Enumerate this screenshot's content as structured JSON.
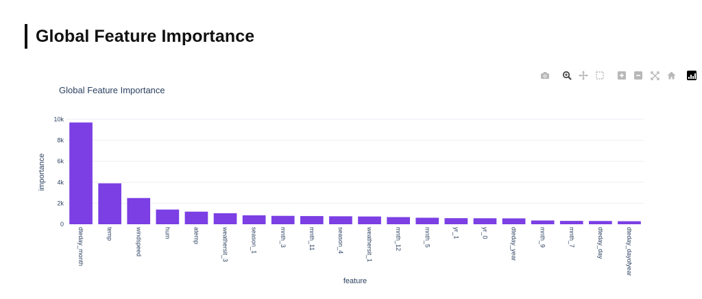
{
  "page": {
    "title": "Global Feature Importance"
  },
  "toolbar": {
    "buttons": [
      {
        "name": "camera-icon"
      },
      {
        "name": "zoom-icon"
      },
      {
        "name": "pan-icon"
      },
      {
        "name": "box-select-icon"
      },
      {
        "name": "zoom-in-icon"
      },
      {
        "name": "zoom-out-icon"
      },
      {
        "name": "autoscale-icon"
      },
      {
        "name": "reset-axes-icon"
      },
      {
        "name": "plotly-logo-icon"
      }
    ]
  },
  "chart_data": {
    "type": "bar",
    "title": "Global Feature Importance",
    "xlabel": "feature",
    "ylabel": "importance",
    "ylim": [
      0,
      10000
    ],
    "yticks": [
      0,
      2000,
      4000,
      6000,
      8000,
      10000
    ],
    "ytick_labels": [
      "0",
      "2k",
      "4k",
      "6k",
      "8k",
      "10k"
    ],
    "grid": true,
    "bar_color": "#7b3fe4",
    "categories": [
      "dteday_month",
      "temp",
      "windspeed",
      "hum",
      "atemp",
      "weathersit_3",
      "season_1",
      "mnth_3",
      "mnth_11",
      "season_4",
      "weathersit_1",
      "mnth_12",
      "mnth_5",
      "yr_1",
      "yr_0",
      "dteday_year",
      "mnth_9",
      "mnth_7",
      "dteday_day",
      "dteday_dayofyear"
    ],
    "values": [
      9700,
      3900,
      2500,
      1400,
      1200,
      1050,
      850,
      800,
      780,
      760,
      740,
      680,
      620,
      580,
      570,
      560,
      360,
      320,
      310,
      290
    ]
  }
}
